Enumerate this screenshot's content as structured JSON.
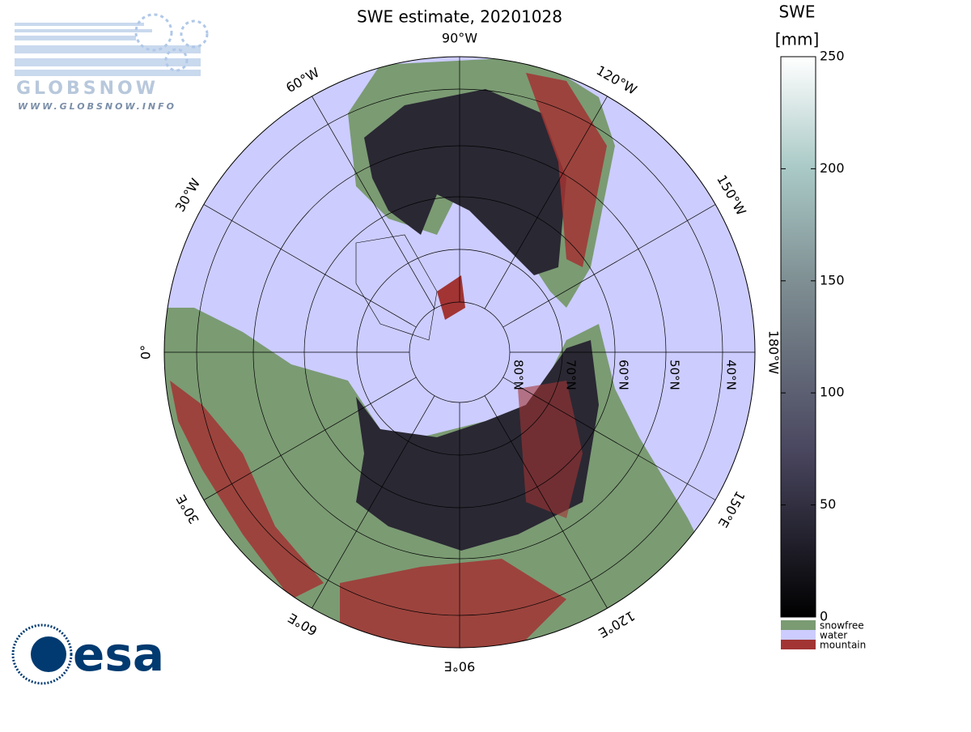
{
  "title": "SWE estimate, 20201028",
  "logos": {
    "globsnow": "GLOBSNOW",
    "globsnow_url": "WWW.GLOBSNOW.INFO",
    "esa": "esa"
  },
  "map": {
    "longitude_labels": [
      "0°",
      "30°W",
      "60°W",
      "90°W",
      "120°W",
      "150°W",
      "180°W",
      "150°E",
      "120°E",
      "90°E",
      "60°E",
      "30°E"
    ],
    "latitude_labels": [
      "80°N",
      "70°N",
      "60°N",
      "50°N",
      "40°N"
    ]
  },
  "colorbar": {
    "title": [
      "SWE",
      "[mm]"
    ],
    "lim": [
      0,
      250
    ],
    "ticks": [
      0,
      50,
      100,
      150,
      200,
      250
    ]
  },
  "legend": [
    {
      "label": "snowfree",
      "color": "#7b9b73"
    },
    {
      "label": "water",
      "color": "#ccccff"
    },
    {
      "label": "mountain",
      "color": "#a23434"
    }
  ]
}
